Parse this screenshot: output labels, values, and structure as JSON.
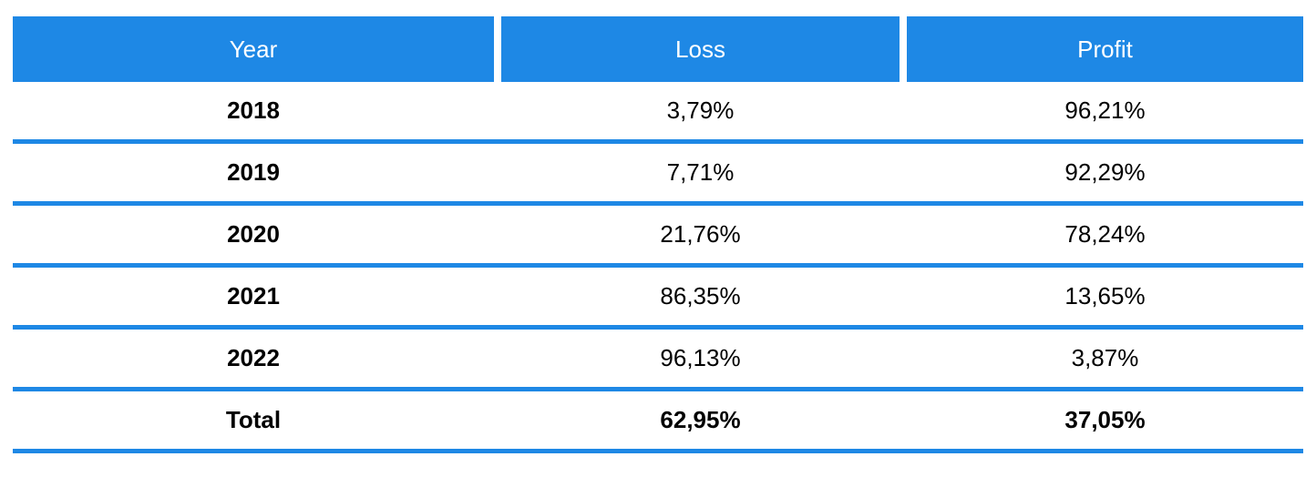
{
  "table": {
    "columns": [
      {
        "label": "Year"
      },
      {
        "label": "Loss"
      },
      {
        "label": "Profit"
      }
    ],
    "rows": [
      {
        "year": "2018",
        "loss": "3,79%",
        "profit": "96,21%"
      },
      {
        "year": "2019",
        "loss": "7,71%",
        "profit": "92,29%"
      },
      {
        "year": "2020",
        "loss": "21,76%",
        "profit": "78,24%"
      },
      {
        "year": "2021",
        "loss": "86,35%",
        "profit": "13,65%"
      },
      {
        "year": "2022",
        "loss": "96,13%",
        "profit": "3,87%"
      },
      {
        "year": "Total",
        "loss": "62,95%",
        "profit": "37,05%"
      }
    ],
    "colors": {
      "accent": "#1e88e5",
      "header_text": "#ffffff",
      "body_text": "#000000"
    }
  },
  "chart_data": {
    "type": "table",
    "title": "",
    "columns": [
      "Year",
      "Loss",
      "Profit"
    ],
    "rows": [
      [
        "2018",
        "3,79%",
        "96,21%"
      ],
      [
        "2019",
        "7,71%",
        "92,29%"
      ],
      [
        "2020",
        "21,76%",
        "78,24%"
      ],
      [
        "2021",
        "86,35%",
        "13,65%"
      ],
      [
        "2022",
        "96,13%",
        "3,87%"
      ],
      [
        "Total",
        "62,95%",
        "37,05%"
      ]
    ],
    "categories": [
      "2018",
      "2019",
      "2020",
      "2021",
      "2022",
      "Total"
    ],
    "series": [
      {
        "name": "Loss",
        "values": [
          3.79,
          7.71,
          21.76,
          86.35,
          96.13,
          62.95
        ]
      },
      {
        "name": "Profit",
        "values": [
          96.21,
          92.29,
          78.24,
          13.65,
          3.87,
          37.05
        ]
      }
    ],
    "value_format": "percent-comma-decimal"
  }
}
